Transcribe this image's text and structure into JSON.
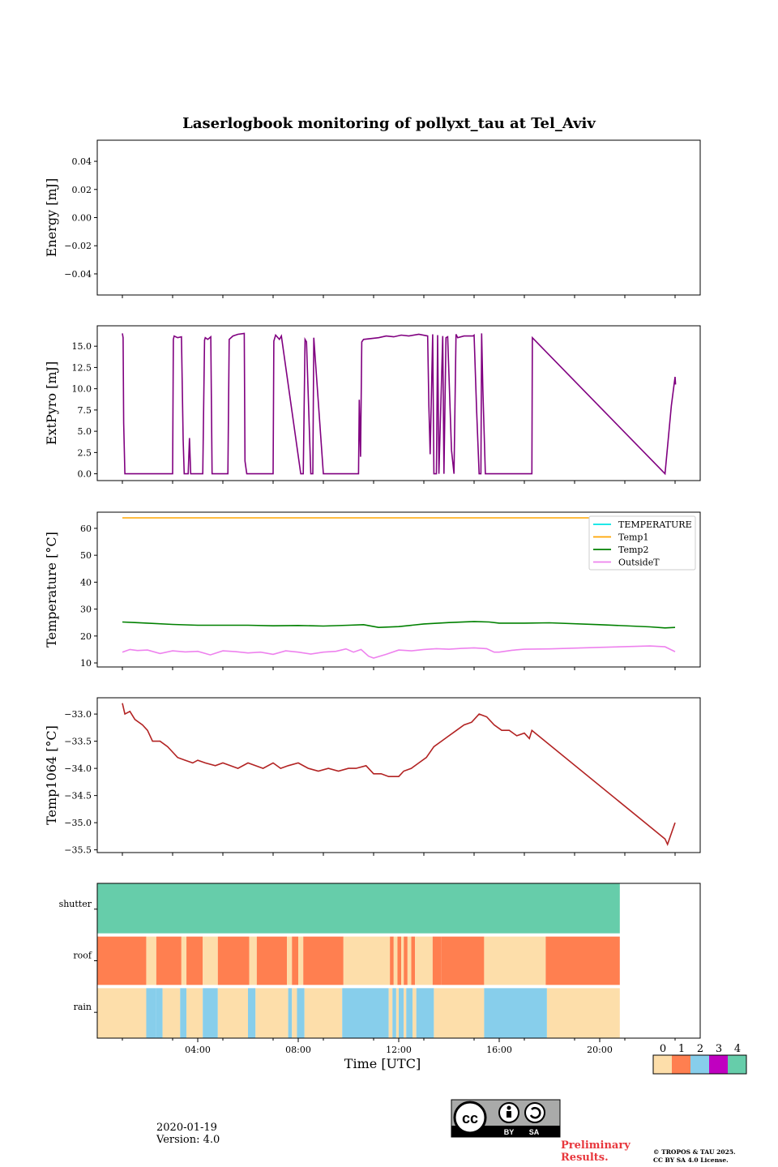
{
  "title": "Laserlogbook monitoring of pollyxt_tau at Tel_Aviv",
  "date": "2020-01-19",
  "version": "Version: 4.0",
  "preliminary": "Preliminary Results.",
  "copyright_line1": "© TROPOS & TAU 2025.",
  "copyright_line2": "CC BY SA 4.0 License.",
  "license_badge": {
    "by": "BY",
    "sa": "SA"
  },
  "chart_data": [
    {
      "type": "line",
      "ylabel": "Energy [mJ]",
      "ylim": [
        -0.055,
        0.055
      ],
      "yticks": [
        -0.04,
        -0.02,
        0.0,
        0.02,
        0.04
      ],
      "ytick_labels": [
        "−0.04",
        "−0.02",
        "0.00",
        "0.02",
        "0.04"
      ],
      "series": []
    },
    {
      "type": "line",
      "ylabel": "ExtPyro [mJ]",
      "ylim": [
        -0.8,
        17.4
      ],
      "yticks": [
        0,
        2.5,
        5,
        7.5,
        10,
        12.5,
        15
      ],
      "ytick_labels": [
        "0.0",
        "2.5",
        "5.0",
        "7.5",
        "10.0",
        "12.5",
        "15.0"
      ],
      "color": "#800080",
      "x": [
        1.0,
        1.03,
        1.05,
        1.1,
        1.15,
        1.2,
        3.0,
        3.03,
        3.06,
        3.2,
        3.35,
        3.42,
        3.46,
        3.52,
        3.62,
        3.67,
        3.72,
        3.75,
        3.8,
        4.2,
        4.27,
        4.3,
        4.4,
        4.52,
        4.57,
        5.2,
        5.25,
        5.4,
        5.6,
        5.85,
        5.88,
        5.95,
        7.0,
        7.03,
        7.1,
        7.25,
        7.33,
        8.1,
        8.2,
        8.27,
        8.33,
        8.5,
        8.58,
        8.62,
        9.0,
        10.4,
        10.43,
        10.48,
        10.53,
        10.6,
        11.2,
        11.5,
        11.8,
        12.1,
        12.4,
        12.8,
        13.15,
        13.2,
        13.25,
        13.35,
        13.4,
        13.5,
        13.55,
        13.6,
        13.75,
        13.8,
        13.88,
        13.95,
        14.1,
        14.2,
        14.28,
        14.35,
        14.6,
        14.95,
        15.0,
        15.1,
        15.2,
        15.27,
        15.3,
        15.35,
        15.45,
        15.6,
        17.3,
        17.32,
        22.6,
        22.85,
        23.0,
        23.02
      ],
      "y": [
        16.5,
        16.0,
        6.0,
        0.0,
        0.0,
        0.0,
        0.0,
        15.8,
        16.2,
        16.0,
        16.1,
        4.0,
        0.0,
        0.0,
        0.0,
        4.2,
        0.0,
        0.0,
        0.0,
        0.0,
        15.7,
        16.0,
        15.8,
        16.1,
        0.0,
        0.0,
        15.8,
        16.2,
        16.4,
        16.5,
        1.5,
        0.0,
        0.0,
        15.6,
        16.3,
        15.8,
        16.2,
        0.0,
        0.0,
        15.8,
        15.5,
        0.0,
        0.0,
        16.0,
        0.0,
        0.0,
        8.7,
        2.0,
        15.5,
        15.8,
        16.0,
        16.2,
        16.1,
        16.3,
        16.2,
        16.4,
        16.2,
        8.0,
        2.3,
        16.4,
        0.0,
        0.0,
        16.3,
        0.0,
        16.2,
        0.0,
        16.0,
        16.1,
        2.8,
        0.0,
        16.4,
        16.0,
        16.2,
        16.2,
        16.3,
        7.5,
        0.0,
        0.0,
        16.5,
        10.0,
        0.0,
        0.0,
        0.0,
        16.0,
        0.0,
        8.0,
        11.4,
        10.5
      ]
    },
    {
      "type": "line",
      "ylabel": "Temperature [°C]",
      "ylim": [
        8.5,
        66
      ],
      "yticks": [
        10,
        20,
        30,
        40,
        50,
        60
      ],
      "ytick_labels": [
        "10",
        "20",
        "30",
        "40",
        "50",
        "60"
      ],
      "legend_position": "top-right",
      "series": [
        {
          "name": "TEMPERATURE",
          "color": "#00e5e5",
          "x": [],
          "y": []
        },
        {
          "name": "Temp1",
          "color": "#ffa500",
          "x": [
            1.0,
            20.8
          ],
          "y": [
            63.9,
            63.9
          ]
        },
        {
          "name": "Temp2",
          "color": "#008000",
          "x": [
            1.0,
            1.5,
            2.0,
            3.0,
            4.0,
            5.0,
            6.0,
            7.0,
            8.0,
            9.0,
            10.0,
            10.6,
            11.2,
            12.0,
            13.0,
            14.0,
            15.0,
            15.6,
            16.0,
            17.0,
            18.0,
            20.0,
            22.0,
            22.6,
            23.0
          ],
          "y": [
            25.2,
            25.0,
            24.8,
            24.3,
            24.0,
            24.0,
            24.0,
            23.8,
            23.9,
            23.7,
            24.0,
            24.2,
            23.2,
            23.5,
            24.5,
            25.0,
            25.4,
            25.2,
            24.8,
            24.8,
            24.9,
            24.2,
            23.4,
            23.0,
            23.2
          ]
        },
        {
          "name": "OutsideT",
          "color": "#ee82ee",
          "x": [
            1.0,
            1.3,
            1.6,
            2.0,
            2.5,
            3.0,
            3.5,
            4.0,
            4.5,
            5.0,
            5.5,
            6.0,
            6.5,
            7.0,
            7.5,
            8.0,
            8.5,
            9.0,
            9.5,
            9.9,
            10.2,
            10.5,
            10.8,
            11.0,
            11.5,
            12.0,
            12.5,
            13.0,
            13.5,
            14.0,
            14.5,
            15.0,
            15.5,
            15.8,
            16.0,
            16.5,
            17.0,
            18.0,
            20.0,
            22.0,
            22.6,
            23.0
          ],
          "y": [
            14.0,
            15.0,
            14.6,
            14.8,
            13.5,
            14.5,
            14.1,
            14.3,
            13.0,
            14.5,
            14.2,
            13.7,
            14.0,
            13.2,
            14.5,
            14.0,
            13.3,
            14.0,
            14.3,
            15.2,
            14.0,
            15.0,
            12.5,
            11.8,
            13.2,
            14.8,
            14.5,
            15.0,
            15.3,
            15.1,
            15.4,
            15.6,
            15.3,
            14.0,
            14.0,
            14.7,
            15.1,
            15.2,
            15.8,
            16.3,
            16.0,
            14.2
          ]
        }
      ]
    },
    {
      "type": "line",
      "ylabel": "Temp1064 [°C]",
      "ylim": [
        -35.55,
        -32.7
      ],
      "yticks": [
        -35.5,
        -35.0,
        -34.5,
        -34.0,
        -33.5,
        -33.0
      ],
      "ytick_labels": [
        "−35.5",
        "−35.0",
        "−34.5",
        "−34.0",
        "−33.5",
        "−33.0"
      ],
      "color": "#b22222",
      "x": [
        1.0,
        1.1,
        1.3,
        1.5,
        1.8,
        2.0,
        2.2,
        2.5,
        2.8,
        3.0,
        3.2,
        3.5,
        3.8,
        4.0,
        4.3,
        4.7,
        5.0,
        5.3,
        5.6,
        6.0,
        6.3,
        6.6,
        7.0,
        7.3,
        7.6,
        8.0,
        8.4,
        8.8,
        9.2,
        9.6,
        10.0,
        10.3,
        10.7,
        11.0,
        11.3,
        11.6,
        12.0,
        12.2,
        12.5,
        12.8,
        13.1,
        13.4,
        13.7,
        14.0,
        14.3,
        14.6,
        14.9,
        15.2,
        15.5,
        15.8,
        16.1,
        16.4,
        16.7,
        17.0,
        17.2,
        17.3,
        22.6,
        22.7,
        23.0
      ],
      "y": [
        -32.8,
        -33.0,
        -32.95,
        -33.1,
        -33.2,
        -33.3,
        -33.5,
        -33.5,
        -33.6,
        -33.7,
        -33.8,
        -33.85,
        -33.9,
        -33.85,
        -33.9,
        -33.95,
        -33.9,
        -33.95,
        -34.0,
        -33.9,
        -33.95,
        -34.0,
        -33.9,
        -34.0,
        -33.95,
        -33.9,
        -34.0,
        -34.05,
        -34.0,
        -34.05,
        -34.0,
        -34.0,
        -33.95,
        -34.1,
        -34.1,
        -34.15,
        -34.15,
        -34.05,
        -34.0,
        -33.9,
        -33.8,
        -33.6,
        -33.5,
        -33.4,
        -33.3,
        -33.2,
        -33.15,
        -33.0,
        -33.05,
        -33.2,
        -33.3,
        -33.3,
        -33.4,
        -33.35,
        -33.45,
        -33.3,
        -35.3,
        -35.4,
        -35.0
      ]
    },
    {
      "type": "heatmap",
      "rows": [
        "shutter",
        "roof",
        "rain"
      ],
      "xticks": [
        4,
        8,
        12,
        16,
        20
      ],
      "xtick_labels": [
        "04:00",
        "08:00",
        "12:00",
        "16:00",
        "20:00"
      ],
      "xlabel": "Time [UTC]",
      "colorbar": {
        "ticks": [
          "0",
          "1",
          "2",
          "3",
          "4"
        ],
        "colors": [
          "#fddeaa",
          "#ff7f50",
          "#87ceeb",
          "#c000c0",
          "#66cdaa"
        ]
      },
      "segments": {
        "shutter": [
          [
            0,
            20.8,
            4
          ]
        ],
        "roof": [
          [
            0,
            1.95,
            1
          ],
          [
            1.95,
            2.35,
            0
          ],
          [
            2.35,
            3.35,
            1
          ],
          [
            3.35,
            3.55,
            0
          ],
          [
            3.55,
            4.2,
            1
          ],
          [
            4.2,
            4.8,
            0
          ],
          [
            4.8,
            6.05,
            1
          ],
          [
            6.05,
            6.35,
            0
          ],
          [
            6.35,
            7.55,
            1
          ],
          [
            7.55,
            7.75,
            0
          ],
          [
            7.75,
            8.0,
            1
          ],
          [
            8.0,
            8.2,
            0
          ],
          [
            8.2,
            9.8,
            1
          ],
          [
            9.8,
            11.65,
            0
          ],
          [
            11.65,
            11.8,
            1
          ],
          [
            11.8,
            11.95,
            0
          ],
          [
            11.95,
            12.1,
            1
          ],
          [
            12.1,
            12.2,
            0
          ],
          [
            12.2,
            12.35,
            1
          ],
          [
            12.35,
            12.5,
            0
          ],
          [
            12.5,
            12.65,
            1
          ],
          [
            12.65,
            13.35,
            0
          ],
          [
            13.35,
            13.7,
            1
          ],
          [
            13.7,
            15.4,
            1
          ],
          [
            15.4,
            17.85,
            0
          ],
          [
            17.85,
            20.8,
            1
          ]
        ],
        "rain": [
          [
            0,
            1.95,
            0
          ],
          [
            1.95,
            2.35,
            2
          ],
          [
            2.35,
            2.6,
            2
          ],
          [
            2.6,
            3.3,
            0
          ],
          [
            3.3,
            3.55,
            2
          ],
          [
            3.55,
            4.2,
            0
          ],
          [
            4.2,
            4.8,
            2
          ],
          [
            4.8,
            6.0,
            0
          ],
          [
            6.0,
            6.3,
            2
          ],
          [
            6.3,
            7.6,
            0
          ],
          [
            7.6,
            7.75,
            2
          ],
          [
            7.75,
            7.95,
            0
          ],
          [
            7.95,
            8.25,
            2
          ],
          [
            8.25,
            9.75,
            0
          ],
          [
            9.75,
            11.6,
            2
          ],
          [
            11.6,
            11.75,
            0
          ],
          [
            11.75,
            11.9,
            2
          ],
          [
            11.9,
            12.0,
            0
          ],
          [
            12.0,
            12.2,
            2
          ],
          [
            12.2,
            12.3,
            0
          ],
          [
            12.3,
            12.55,
            2
          ],
          [
            12.55,
            12.7,
            0
          ],
          [
            12.7,
            13.4,
            2
          ],
          [
            13.4,
            15.4,
            0
          ],
          [
            15.4,
            17.9,
            2
          ],
          [
            17.9,
            20.8,
            0
          ]
        ]
      }
    }
  ]
}
